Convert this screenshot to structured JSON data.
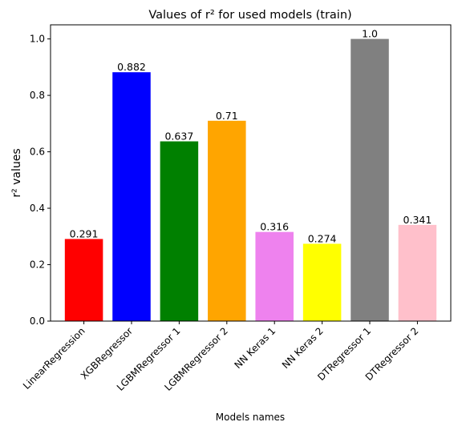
{
  "chart_data": {
    "type": "bar",
    "title": "Values of r² for used models (train)",
    "xlabel": "Models names",
    "ylabel": "r² values",
    "categories": [
      "LinearRegression",
      "XGBRegressor",
      "LGBMRegressor 1",
      "LGBMRegressor 2",
      "NN Keras 1",
      "NN Keras 2",
      "DTRegressor 1",
      "DTRegressor 2"
    ],
    "values": [
      0.291,
      0.882,
      0.637,
      0.71,
      0.316,
      0.274,
      1.0,
      0.341
    ],
    "value_labels": [
      "0.291",
      "0.882",
      "0.637",
      "0.71",
      "0.316",
      "0.274",
      "1.0",
      "0.341"
    ],
    "colors": [
      "#ff0000",
      "#0000ff",
      "#008000",
      "#ffa500",
      "#ee82ee",
      "#ffff00",
      "#808080",
      "#ffc0cb"
    ],
    "ylim": [
      0,
      1.05
    ],
    "yticks": [
      0.0,
      0.2,
      0.4,
      0.6,
      0.8,
      1.0
    ],
    "ytick_labels": [
      "0.0",
      "0.2",
      "0.4",
      "0.6",
      "0.8",
      "1.0"
    ],
    "grid": false,
    "xtick_rotation_deg": 45
  }
}
